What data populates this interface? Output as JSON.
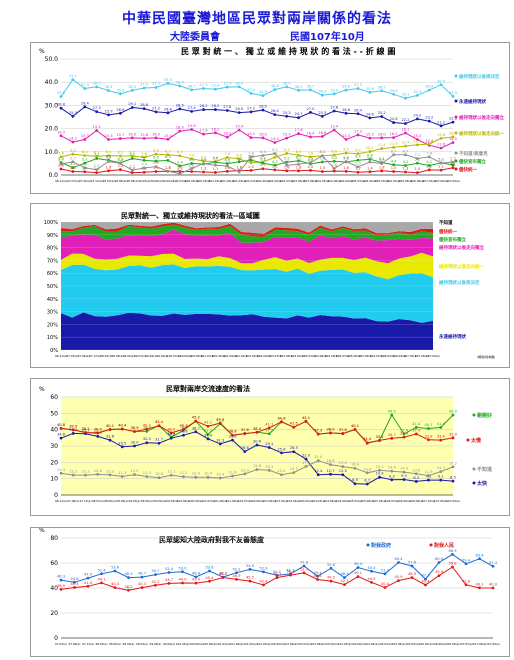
{
  "header": {
    "title": "中華民國臺灣地區民眾對兩岸關係的看法",
    "org": "大陸委員會",
    "date": "民國107年10月"
  },
  "chart_data": [
    {
      "type": "line",
      "title": "民 眾 對 統 一 、 獨 立 或 維 持 現 狀 的 看 法 - - 折 線 圖",
      "ylabel": "%",
      "ylim": [
        0,
        50
      ],
      "yticks": [
        "0.0",
        "10.0",
        "20.0",
        "30.0",
        "40.0",
        "50.0"
      ],
      "grid": true,
      "legend_placement": "right",
      "x_labels": [
        "96.11(a)",
        "97.03(a)",
        "97.06(a)",
        "97.12(a)",
        "98.03(a)",
        "98.06(a)",
        "98.09(a)",
        "99.03(a)",
        "99.06(a)",
        "99.09(a)",
        "100.03(a)",
        "100.06(a)",
        "100.09(a)",
        "101.03(a)",
        "101.06(a)",
        "101.09(a)",
        "102.03(a)",
        "102.06(a)",
        "102.09(a)",
        "103.03(a)",
        "103.06(a)",
        "103.09(a)",
        "104.03(a)",
        "104.06(a)",
        "104.09(a)",
        "105.03(a)",
        "105.06(a)",
        "105.09(a)",
        "106.03(a)",
        "106.06(a)",
        "106.09(a)",
        "107.03(a)",
        "107.06(a)",
        "107.09(a)"
      ],
      "series": [
        {
          "name": "維持現狀以後再決定",
          "color": "#44c8ee",
          "values": [
            33.8,
            41.1,
            37.3,
            38.0,
            36.4,
            35.0,
            36.5,
            37.5,
            37.7,
            39.5,
            38.4,
            36.7,
            37.3,
            37.0,
            37.9,
            38.0,
            35.2,
            34.2,
            36.8,
            38.0,
            36.5,
            36.7,
            34.4,
            35.0,
            36.6,
            37.3,
            35.6,
            36.3,
            34.8,
            33.1,
            34.3,
            36.6,
            38.9,
            33.9
          ]
        },
        {
          "name": "永遠維持現狀",
          "color": "#1a1aa8",
          "values": [
            28.8,
            25.3,
            29.4,
            27.3,
            25.9,
            26.6,
            29.1,
            28.6,
            27.2,
            26.8,
            28.5,
            27.4,
            28.2,
            28.2,
            27.8,
            26.9,
            27.2,
            28.0,
            26.0,
            25.3,
            24.7,
            27.0,
            25.3,
            27.6,
            26.6,
            26.4,
            24.6,
            25.2,
            22.6,
            22.2,
            24.2,
            23.2,
            21.2,
            22.8
          ]
        },
        {
          "name": "維持現狀以後走向獨立",
          "color": "#e020b8",
          "values": [
            16.9,
            14.2,
            15.3,
            19.2,
            15.3,
            15.7,
            16.0,
            15.8,
            16.0,
            15.4,
            18.9,
            19.6,
            17.6,
            18.2,
            16.3,
            19.4,
            16.1,
            16.0,
            14.0,
            15.9,
            17.8,
            16.4,
            16.6,
            19.4,
            15.3,
            17.3,
            15.9,
            16.0,
            16.1,
            18.1,
            15.3,
            12.8,
            11.6,
            14.0
          ]
        },
        {
          "name": "維持現狀以後走向統一",
          "color": "#b8b800",
          "values": [
            7.8,
            9.0,
            8.4,
            8.1,
            8.4,
            8.2,
            8.2,
            7.6,
            9.0,
            8.7,
            8.3,
            7.0,
            6.0,
            5.8,
            7.6,
            6.9,
            5.3,
            5.6,
            7.6,
            9.3,
            8.5,
            7.8,
            8.3,
            8.6,
            9.5,
            9.2,
            10.1,
            11.4,
            11.9,
            12.5,
            13.0,
            13.3,
            15.8,
            16.4
          ]
        },
        {
          "name": "儘快宣布獨立",
          "color": "#22a822",
          "values": [
            5.4,
            3.2,
            5.1,
            7.1,
            6.4,
            5.2,
            7.1,
            6.3,
            6.0,
            6.3,
            3.9,
            5.0,
            4.7,
            5.5,
            4.9,
            5.7,
            6.4,
            5.1,
            4.2,
            5.5,
            6.1,
            4.8,
            5.6,
            5.9,
            5.6,
            6.4,
            6.8,
            5.4,
            4.4,
            4.1,
            5.1,
            4.1,
            5.2,
            4.3
          ]
        },
        {
          "name": "儘快統一",
          "color": "#e01818",
          "values": [
            2.6,
            1.5,
            1.4,
            1.0,
            1.8,
            2.3,
            1.0,
            1.2,
            1.5,
            1.6,
            1.5,
            1.5,
            1.3,
            1.1,
            1.6,
            1.8,
            2.0,
            2.7,
            2.2,
            1.8,
            1.8,
            2.0,
            1.5,
            1.7,
            1.6,
            1.2,
            1.4,
            1.8,
            1.5,
            1.3,
            1.0,
            2.2,
            2.1,
            3.1
          ]
        },
        {
          "name": "不知道/無意見",
          "color": "#909090",
          "values": [
            4.7,
            5.7,
            3.1,
            2.3,
            5.8,
            5.0,
            2.1,
            3.0,
            3.6,
            1.7,
            0.5,
            2.8,
            4.9,
            4.2,
            3.9,
            1.3,
            7.8,
            8.4,
            9.2,
            4.2,
            4.6,
            5.3,
            8.3,
            2.8,
            5.8,
            3.5,
            5.6,
            4.9,
            8.7,
            8.7,
            7.1,
            7.8,
            5.2,
            5.5
          ]
        }
      ]
    },
    {
      "type": "area",
      "stacked": true,
      "title": "民眾對統一、獨立或維持現狀的看法--區域圖",
      "ylim": [
        0,
        100
      ],
      "yticks": [
        "0%",
        "10%",
        "20%",
        "30%",
        "40%",
        "50%",
        "60%",
        "70%",
        "80%",
        "90%",
        "100%"
      ],
      "x_labels": [
        "96.11(a)",
        "97.03(a)",
        "97.06(a)",
        "97.12(a)",
        "98.03(a)",
        "98.06(a)",
        "98.09(a)",
        "99.03(a)",
        "99.06(a)",
        "99.09(a)",
        "100.03(a)",
        "100.06(a)",
        "100.09(a)",
        "101.03(a)",
        "101.06(a)",
        "101.09(a)",
        "102.03(a)",
        "102.06(a)",
        "102.09(a)",
        "103.03(a)",
        "103.06(a)",
        "103.09(a)",
        "104.03(a)",
        "104.06(a)",
        "104.09(a)",
        "105.03(a)",
        "105.06(a)",
        "105.09(a)",
        "106.03(a)",
        "106.06(a)",
        "106.09(a)",
        "107.03(a)",
        "107.06(a)",
        "107.09(a)"
      ],
      "x_axis_note": "(時間/樣本數)",
      "series_order_bottom_to_top": [
        "永遠維持現狀",
        "維持現狀以後再決定",
        "維持現狀以後走向統一",
        "維持現狀以後走向獨立",
        "儘快宣布獨立",
        "儘快統一",
        "不知道/無意見"
      ],
      "legend": [
        {
          "label": "不知道",
          "color": "#a0a0a0"
        },
        {
          "label": "儘快統一",
          "color": "#e01818"
        },
        {
          "label": "儘快宣布獨立",
          "color": "#22a822"
        },
        {
          "label": "維持現狀以後走向獨立",
          "color": "#e020b8"
        },
        {
          "label": "維持現狀以後走向統一",
          "color": "#e8e800"
        },
        {
          "label": "維持現狀以後再決定",
          "color": "#44c8ee"
        },
        {
          "label": "永遠維持現狀",
          "color": "#1a1aa8"
        }
      ]
    },
    {
      "type": "line",
      "title": "民眾對兩岸交流速度的看法",
      "ylabel": "%",
      "ylim": [
        0,
        60
      ],
      "yticks": [
        "0",
        "10",
        "20",
        "30",
        "40",
        "50",
        "60"
      ],
      "x_labels": [
        "96.11(a)",
        "97.06(a)",
        "97.12(a)",
        "98.03(a)",
        "98.06(a)",
        "98.09(a)",
        "99.03(a)",
        "99.06(a)",
        "99.09(a)",
        "100.03(a)",
        "100.06(a)",
        "100.09(a)",
        "101.03(a)",
        "101.06(a)",
        "101.09(a)",
        "102.03(a)",
        "102.06(a)",
        "102.09(a)",
        "103.03(a)",
        "103.06(a)",
        "103.09(a)",
        "104.03(a)",
        "104.06(a)",
        "104.09(a)",
        "105.03(a)",
        "105.06(a)",
        "105.09(a)",
        "106.03(a)",
        "106.06(a)",
        "106.09(a)",
        "107.03(a)",
        "107.06(a)",
        "107.09(a)"
      ],
      "series": [
        {
          "name": "剛剛好",
          "color": "#22a822",
          "values": [
            40.8,
            39.9,
            38.2,
            38.0,
            40.1,
            40.4,
            38.9,
            39.0,
            42.4,
            35.4,
            39.6,
            45.2,
            37.1,
            43.6,
            36.6,
            37.6,
            38.4,
            37.5,
            44.8,
            41.5,
            45.1,
            37.3,
            38.0,
            37.6,
            40.1,
            32.0,
            33.4,
            49.0,
            37.4,
            41.4,
            40.7,
            41.4,
            49.0
          ]
        },
        {
          "name": "太快",
          "color": "#1a1aa8",
          "values": [
            34.8,
            37.7,
            37.5,
            35.9,
            33.6,
            29.5,
            30.0,
            32.0,
            31.7,
            34.8,
            36.6,
            38.7,
            34.4,
            31.3,
            33.6,
            26.6,
            30.6,
            29.1,
            25.8,
            26.5,
            22.0,
            12.4,
            12.7,
            12.4,
            6.9,
            6.7,
            10.9,
            9.3,
            9.5,
            8.3,
            9.1,
            9.1,
            8.5
          ]
        },
        {
          "name": "太慢",
          "color": "#e01818",
          "values": [
            40.8,
            39.9,
            38.2,
            38.0,
            40.1,
            40.4,
            38.9,
            40.3,
            42.4,
            38.0,
            40.3,
            45.2,
            42.1,
            44.0,
            36.6,
            37.6,
            38.4,
            41.1,
            44.8,
            41.5,
            45.1,
            37.3,
            38.0,
            37.6,
            40.1,
            31.7,
            33.4,
            34.7,
            35.4,
            37.4,
            33.8,
            33.6,
            35.0
          ]
        },
        {
          "name": "不知道",
          "color": "#909090",
          "values": [
            13.3,
            12.2,
            12.2,
            12.6,
            12.3,
            11.3,
            12.5,
            11.3,
            10.6,
            12.1,
            11.2,
            10.9,
            10.9,
            10.4,
            11.6,
            12.9,
            15.6,
            15.1,
            12.4,
            13.7,
            17.5,
            21.0,
            18.6,
            17.4,
            16.4,
            13.6,
            15.1,
            14.6,
            14.0,
            13.0,
            11.9,
            14.3,
            17.2
          ]
        }
      ]
    },
    {
      "type": "line",
      "title": "民眾認知大陸政府對我不友善態度",
      "ylabel": "%",
      "ylim": [
        0,
        80
      ],
      "yticks": [
        "0",
        "20",
        "40",
        "60",
        "80"
      ],
      "x_labels": [
        "97.03(a)",
        "97.06(a)",
        "97.12(a)",
        "98.03(a)",
        "98.06(a)",
        "98.09(a)",
        "99.03(a)",
        "99.06(a)",
        "99.09(a)",
        "100.03(a)",
        "100.06(a)",
        "100.09(a)",
        "101.03(a)",
        "101.06(a)",
        "101.09(a)",
        "102.03(a)",
        "102.06(a)",
        "102.09(a)",
        "103.03(a)",
        "103.06(a)",
        "103.09(a)",
        "104.03(a)",
        "104.06(a)",
        "104.09(a)",
        "105.03(a)",
        "105.06(a)",
        "105.09(a)",
        "106.03(a)",
        "106.06(a)",
        "106.09(a)",
        "107.03(a)",
        "107.06(a)",
        "107.09(a)"
      ],
      "series": [
        {
          "name": "對我政府",
          "color": "#1a6ad6",
          "values": [
            46.3,
            44.6,
            47.9,
            51.4,
            53.6,
            48.3,
            48.7,
            50.7,
            52.4,
            53.0,
            48.8,
            53.6,
            48.7,
            52.2,
            54.9,
            52.9,
            50.1,
            51.3,
            57.6,
            49.4,
            55.8,
            48.3,
            56.4,
            53.4,
            51.3,
            60.4,
            57.6,
            47.1,
            60.4,
            66.9,
            59.4,
            63.4,
            57.4
          ]
        },
        {
          "name": "對我人民",
          "color": "#e01818",
          "values": [
            38.9,
            40.4,
            41.4,
            44.1,
            40.3,
            38.2,
            40.3,
            42.2,
            43.7,
            44.0,
            43.9,
            45.4,
            48.4,
            46.9,
            45.5,
            42.4,
            48.3,
            50.3,
            52.1,
            46.8,
            45.5,
            42.7,
            49.1,
            44.5,
            40.4,
            45.9,
            48.3,
            42.4,
            49.9,
            56.8,
            42.6,
            40.1,
            40.0
          ]
        }
      ]
    }
  ]
}
